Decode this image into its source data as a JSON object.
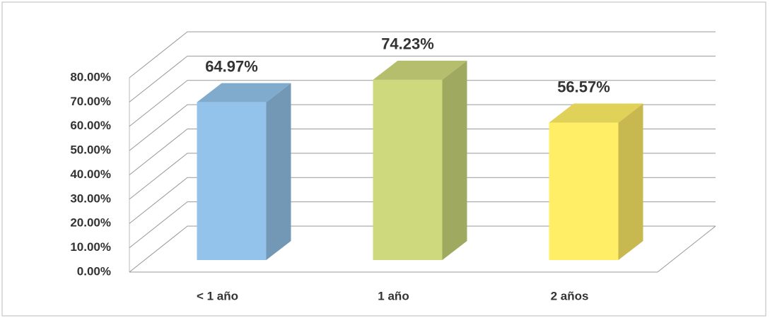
{
  "chart_data": {
    "type": "bar3d",
    "categories": [
      "< 1 año",
      "1 año",
      "2 años"
    ],
    "values": [
      64.97,
      74.23,
      56.57
    ],
    "value_labels": [
      "64.97%",
      "74.23%",
      "56.57%"
    ],
    "colors": [
      "#93c3ea",
      "#cdd97c",
      "#ffee66"
    ],
    "ylim": [
      0,
      80
    ],
    "yticks": [
      {
        "value": 0,
        "label": "0.00%"
      },
      {
        "value": 10,
        "label": "10.00%"
      },
      {
        "value": 20,
        "label": "20.00%"
      },
      {
        "value": 30,
        "label": "30.00%"
      },
      {
        "value": 40,
        "label": "40.00%"
      },
      {
        "value": 50,
        "label": "50.00%"
      },
      {
        "value": 60,
        "label": "60.00%"
      },
      {
        "value": 70,
        "label": "70.00%"
      },
      {
        "value": 80,
        "label": "80.00%"
      }
    ],
    "grid": true
  }
}
